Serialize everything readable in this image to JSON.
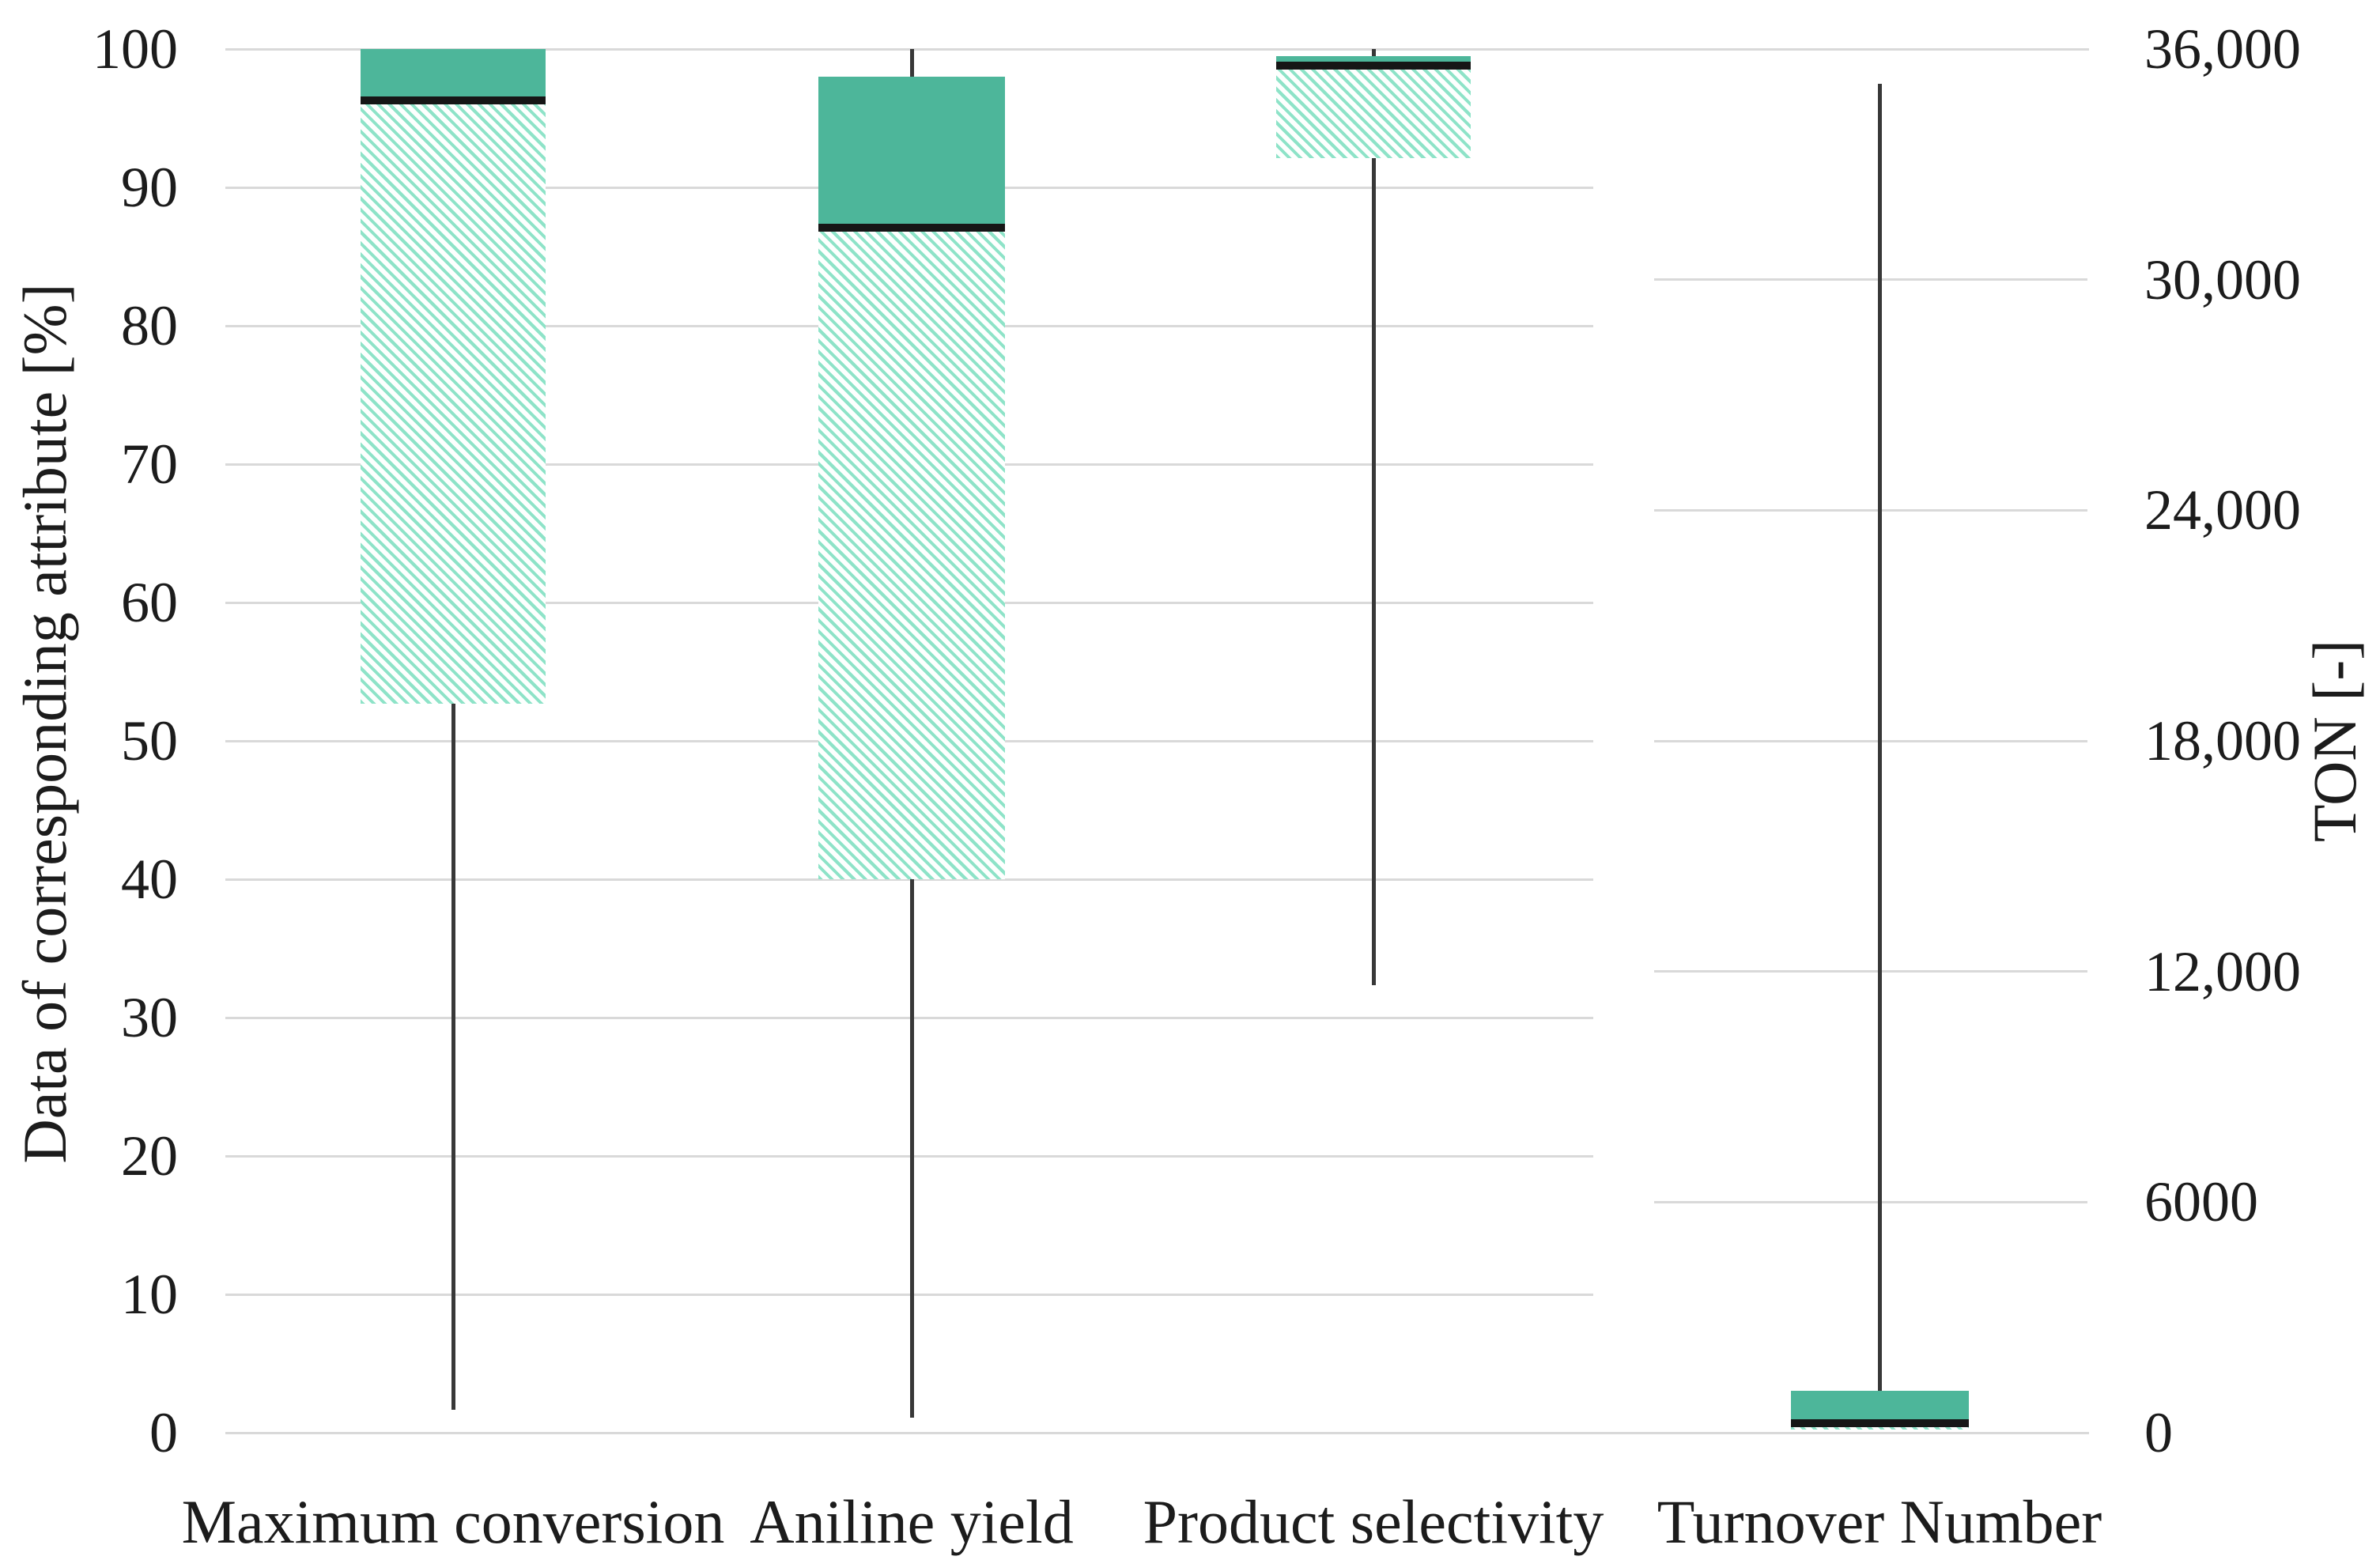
{
  "figure": {
    "background_color": "#ffffff"
  },
  "left_axis": {
    "title": "Data of corresponding attribute [%]",
    "ticks": [
      "100",
      "90",
      "80",
      "70",
      "60",
      "50",
      "40",
      "30",
      "20",
      "10",
      "0"
    ],
    "range": [
      0,
      100
    ]
  },
  "right_axis": {
    "title": "TON [-]",
    "ticks": [
      "36,000",
      "30,000",
      "24,000",
      "18,000",
      "12,000",
      "6000",
      "0"
    ],
    "range": [
      0,
      36000
    ]
  },
  "chart_data": {
    "type": "box",
    "title": "",
    "categories": [
      "Maximum conversion",
      "Aniline yield",
      "Product selectivity",
      "Turnover Number"
    ],
    "grid": true,
    "legend_position": "none",
    "box_style_note": "solid fill = median to Q3, hatched fill = Q1 to median, thick black line = median, thin line = whisker",
    "series": [
      {
        "name": "Maximum conversion",
        "axis": "left",
        "unit": "%",
        "max": 100,
        "q3": 100,
        "median": 96.3,
        "q1": 52.7,
        "min": 1.7
      },
      {
        "name": "Aniline yield",
        "axis": "left",
        "unit": "%",
        "max": 100,
        "q3": 98,
        "median": 87.1,
        "q1": 40,
        "min": 1.1
      },
      {
        "name": "Product selectivity",
        "axis": "left",
        "unit": "%",
        "max": 100,
        "q3": 99.5,
        "median": 98.8,
        "q1": 92.1,
        "min": 32.3
      },
      {
        "name": "Turnover Number",
        "axis": "right",
        "unit": "TON",
        "max": 35100,
        "q3": 1100,
        "median": 250,
        "q1": 80,
        "min": 80
      }
    ]
  },
  "colors": {
    "box_solid": "#4db69a",
    "box_hatch_stripe": "#8ee3c8",
    "box_hatch_background": "#fdfffe",
    "median": "#161616",
    "whisker": "#383838",
    "gridline": "#d9d9d9",
    "text": "#1c1c1c"
  }
}
